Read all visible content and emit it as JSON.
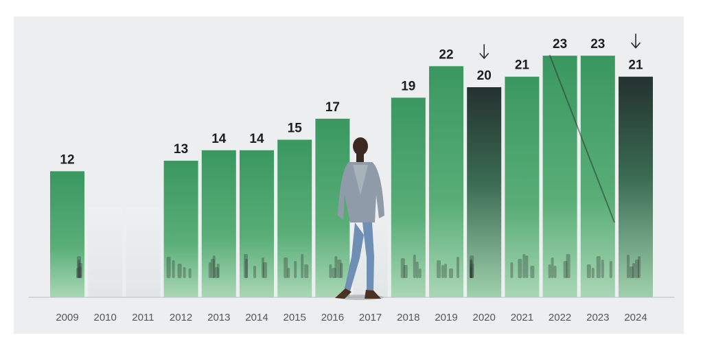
{
  "colors": {
    "background": "#eceef0",
    "bar_green": "#3f9a62",
    "bar_green_light": "#8fcaa1",
    "bar_dark": "#27393a",
    "bar_empty": "#e2e6e8",
    "axis": "#b9bdc0",
    "label": "#1d1d1d"
  },
  "chart_data": {
    "type": "bar",
    "title": "",
    "xlabel": "",
    "ylabel": "",
    "categories": [
      "2009",
      "2010",
      "2011",
      "2012",
      "2013",
      "2014",
      "2015",
      "2016",
      "2017",
      "2018",
      "2019",
      "2020",
      "2021",
      "2022",
      "2023",
      "2024"
    ],
    "values": [
      12,
      null,
      null,
      13,
      14,
      14,
      15,
      17,
      null,
      19,
      22,
      20,
      21,
      23,
      23,
      21
    ],
    "value_labels": [
      "12",
      "",
      "",
      "13",
      "14",
      "14",
      "15",
      "17",
      "",
      "19",
      "22",
      "20",
      "21",
      "23",
      "23",
      "21"
    ],
    "declines": [
      "2020",
      "2024"
    ],
    "decline_marker": "down-arrow",
    "ylim": [
      0,
      25
    ],
    "grid": false,
    "legend": "none"
  }
}
